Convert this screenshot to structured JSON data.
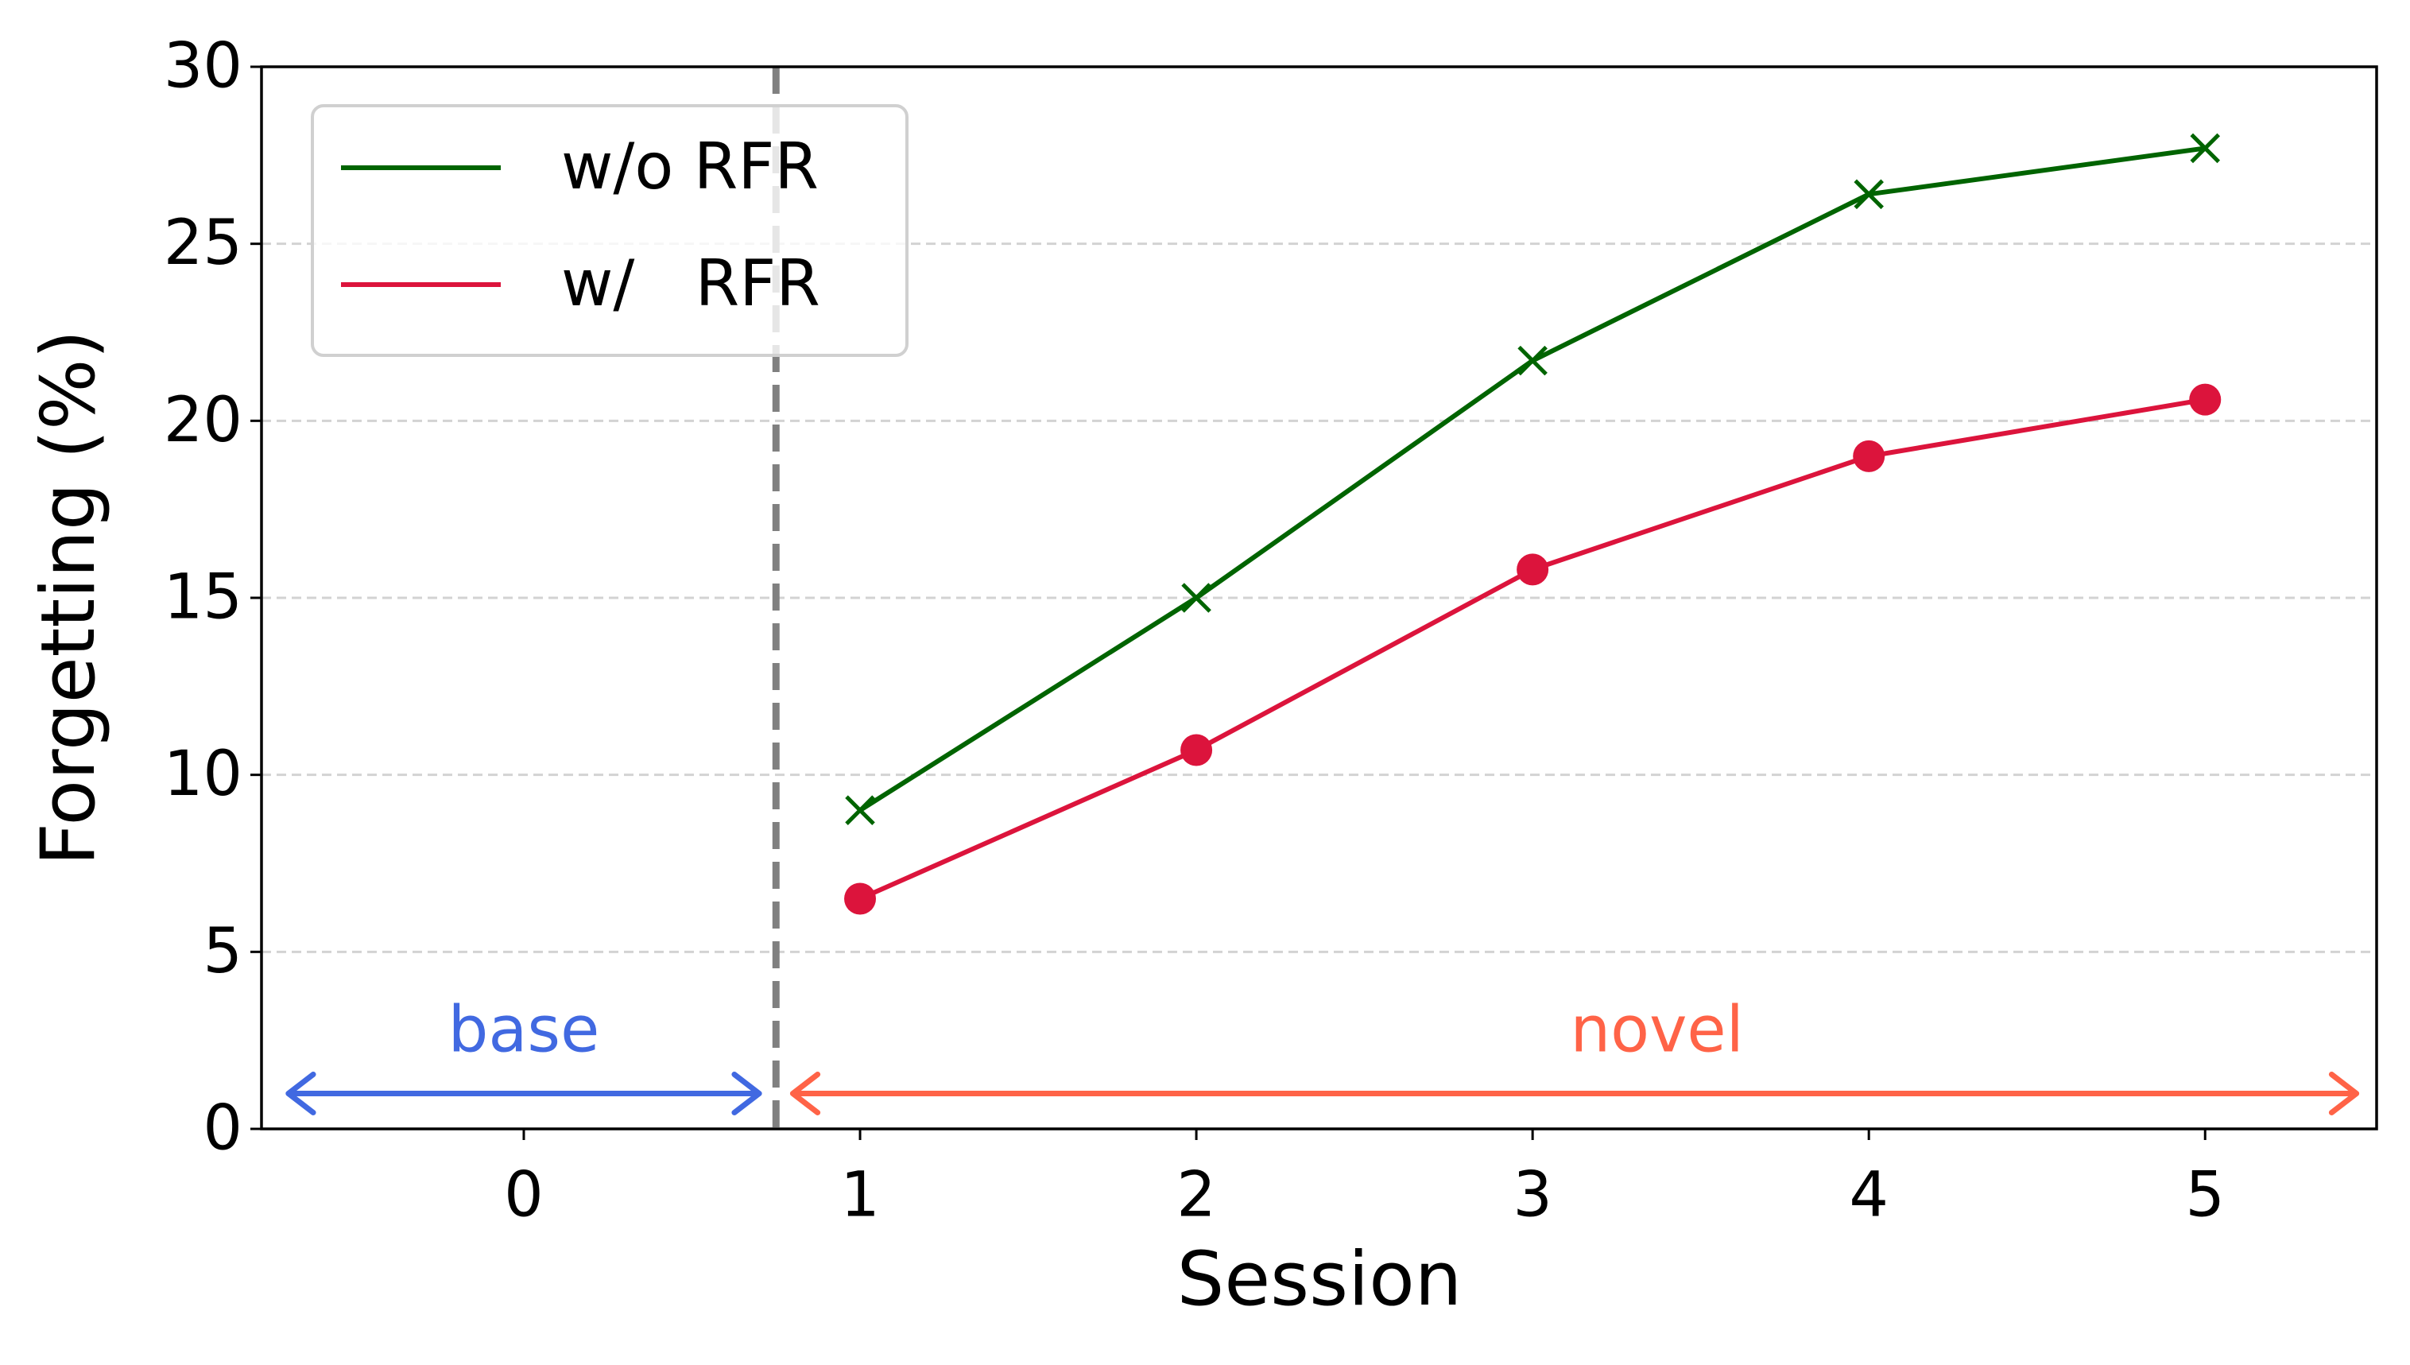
{
  "chart_data": {
    "type": "line",
    "x": [
      1,
      2,
      3,
      4,
      5
    ],
    "series": [
      {
        "name": "w/o RFR",
        "color": "#006400",
        "marker": "x",
        "values": [
          9.0,
          15.0,
          21.7,
          26.4,
          27.7
        ]
      },
      {
        "name": "w/   RFR",
        "color": "#dc143c",
        "marker": "o",
        "values": [
          6.5,
          10.7,
          15.8,
          19.0,
          20.6
        ]
      }
    ],
    "x_label": "Session",
    "y_label": "Forgetting (%)",
    "xlim": [
      -0.78,
      5.51
    ],
    "xticks": [
      0,
      1,
      2,
      3,
      4,
      5
    ],
    "ylim": [
      0,
      30
    ],
    "yticks": [
      0,
      5,
      10,
      15,
      20,
      25,
      30
    ],
    "grid": true,
    "legend": "upper left",
    "annotations": [
      {
        "text": "base",
        "color": "#4169e1"
      },
      {
        "text": "novel",
        "color": "#ff6347"
      }
    ]
  }
}
